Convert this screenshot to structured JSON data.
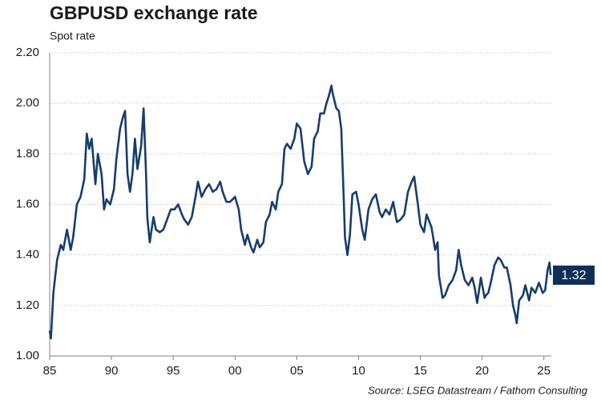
{
  "chart_data": {
    "type": "line",
    "title": "GBPUSD exchange rate",
    "subtitle": "Spot rate",
    "source": "Source: LSEG Datastream / Fathom Consulting",
    "color": "#173d6b",
    "grid": true,
    "xlim": [
      1985,
      2025.6
    ],
    "ylim": [
      1,
      2.2
    ],
    "xticks": [
      {
        "value": 1985,
        "label": "85"
      },
      {
        "value": 1990,
        "label": "90"
      },
      {
        "value": 1995,
        "label": "95"
      },
      {
        "value": 2000,
        "label": "00"
      },
      {
        "value": 2005,
        "label": "05"
      },
      {
        "value": 2010,
        "label": "10"
      },
      {
        "value": 2015,
        "label": "15"
      },
      {
        "value": 2020,
        "label": "20"
      },
      {
        "value": 2025,
        "label": "25"
      }
    ],
    "yticks": [
      {
        "value": 1,
        "label": "1.00"
      },
      {
        "value": 1.2,
        "label": "1.20"
      },
      {
        "value": 1.4,
        "label": "1.40"
      },
      {
        "value": 1.6,
        "label": "1.60"
      },
      {
        "value": 1.8,
        "label": "1.80"
      },
      {
        "value": 2,
        "label": "2.00"
      },
      {
        "value": 2.2,
        "label": "2.20"
      }
    ],
    "x": [
      1985.0,
      1985.1,
      1985.3,
      1985.6,
      1985.9,
      1986.1,
      1986.4,
      1986.7,
      1986.9,
      1987.2,
      1987.5,
      1987.8,
      1988.0,
      1988.2,
      1988.4,
      1988.7,
      1988.9,
      1989.2,
      1989.4,
      1989.6,
      1989.9,
      1990.2,
      1990.4,
      1990.7,
      1990.9,
      1991.1,
      1991.3,
      1991.5,
      1991.7,
      1991.9,
      1992.1,
      1992.4,
      1992.6,
      1992.8,
      1992.9,
      1993.1,
      1993.4,
      1993.6,
      1993.9,
      1994.2,
      1994.5,
      1994.8,
      1995.1,
      1995.4,
      1995.7,
      1995.9,
      1996.2,
      1996.5,
      1996.8,
      1997.0,
      1997.3,
      1997.6,
      1997.9,
      1998.2,
      1998.5,
      1998.8,
      1999.0,
      1999.3,
      1999.6,
      2000.0,
      2000.3,
      2000.5,
      2000.8,
      2001.0,
      2001.3,
      2001.5,
      2001.8,
      2002.0,
      2002.3,
      2002.5,
      2002.8,
      2003.0,
      2003.3,
      2003.5,
      2003.8,
      2004.0,
      2004.2,
      2004.5,
      2004.8,
      2005.0,
      2005.3,
      2005.6,
      2005.9,
      2006.2,
      2006.4,
      2006.7,
      2006.9,
      2007.2,
      2007.4,
      2007.6,
      2007.8,
      2007.9,
      2008.2,
      2008.4,
      2008.6,
      2008.8,
      2008.9,
      2009.1,
      2009.3,
      2009.5,
      2009.8,
      2010.0,
      2010.3,
      2010.5,
      2010.8,
      2011.1,
      2011.4,
      2011.7,
      2011.9,
      2012.2,
      2012.5,
      2012.8,
      2013.1,
      2013.4,
      2013.7,
      2014.0,
      2014.3,
      2014.5,
      2014.8,
      2015.0,
      2015.3,
      2015.5,
      2015.9,
      2016.2,
      2016.4,
      2016.5,
      2016.8,
      2017.0,
      2017.3,
      2017.6,
      2017.9,
      2018.1,
      2018.3,
      2018.6,
      2018.9,
      2019.2,
      2019.4,
      2019.6,
      2019.9,
      2020.2,
      2020.3,
      2020.5,
      2020.7,
      2021.0,
      2021.3,
      2021.5,
      2021.8,
      2022.0,
      2022.3,
      2022.5,
      2022.7,
      2022.8,
      2023.0,
      2023.3,
      2023.5,
      2023.8,
      2024.0,
      2024.3,
      2024.6,
      2024.9,
      2025.1,
      2025.3,
      2025.45,
      2025.55
    ],
    "values": [
      1.1,
      1.07,
      1.25,
      1.38,
      1.44,
      1.42,
      1.5,
      1.42,
      1.47,
      1.6,
      1.63,
      1.7,
      1.88,
      1.82,
      1.86,
      1.68,
      1.8,
      1.72,
      1.58,
      1.62,
      1.6,
      1.66,
      1.78,
      1.9,
      1.94,
      1.97,
      1.72,
      1.65,
      1.72,
      1.86,
      1.74,
      1.83,
      1.98,
      1.72,
      1.55,
      1.45,
      1.55,
      1.5,
      1.49,
      1.5,
      1.54,
      1.58,
      1.58,
      1.6,
      1.56,
      1.54,
      1.52,
      1.55,
      1.63,
      1.69,
      1.63,
      1.66,
      1.68,
      1.65,
      1.66,
      1.69,
      1.65,
      1.61,
      1.61,
      1.63,
      1.58,
      1.5,
      1.44,
      1.48,
      1.43,
      1.41,
      1.46,
      1.43,
      1.45,
      1.53,
      1.56,
      1.61,
      1.58,
      1.65,
      1.68,
      1.82,
      1.84,
      1.82,
      1.86,
      1.92,
      1.9,
      1.77,
      1.72,
      1.75,
      1.86,
      1.89,
      1.96,
      1.96,
      2.0,
      2.03,
      2.07,
      2.04,
      1.98,
      1.97,
      1.9,
      1.62,
      1.47,
      1.4,
      1.48,
      1.64,
      1.65,
      1.6,
      1.5,
      1.46,
      1.58,
      1.62,
      1.64,
      1.57,
      1.55,
      1.58,
      1.56,
      1.61,
      1.53,
      1.54,
      1.56,
      1.65,
      1.69,
      1.71,
      1.6,
      1.52,
      1.49,
      1.56,
      1.51,
      1.42,
      1.45,
      1.32,
      1.23,
      1.24,
      1.28,
      1.3,
      1.34,
      1.42,
      1.36,
      1.3,
      1.28,
      1.31,
      1.27,
      1.21,
      1.31,
      1.23,
      1.24,
      1.25,
      1.29,
      1.36,
      1.39,
      1.38,
      1.35,
      1.35,
      1.28,
      1.2,
      1.16,
      1.13,
      1.22,
      1.24,
      1.28,
      1.22,
      1.27,
      1.25,
      1.29,
      1.25,
      1.26,
      1.34,
      1.37,
      1.32
    ]
  }
}
